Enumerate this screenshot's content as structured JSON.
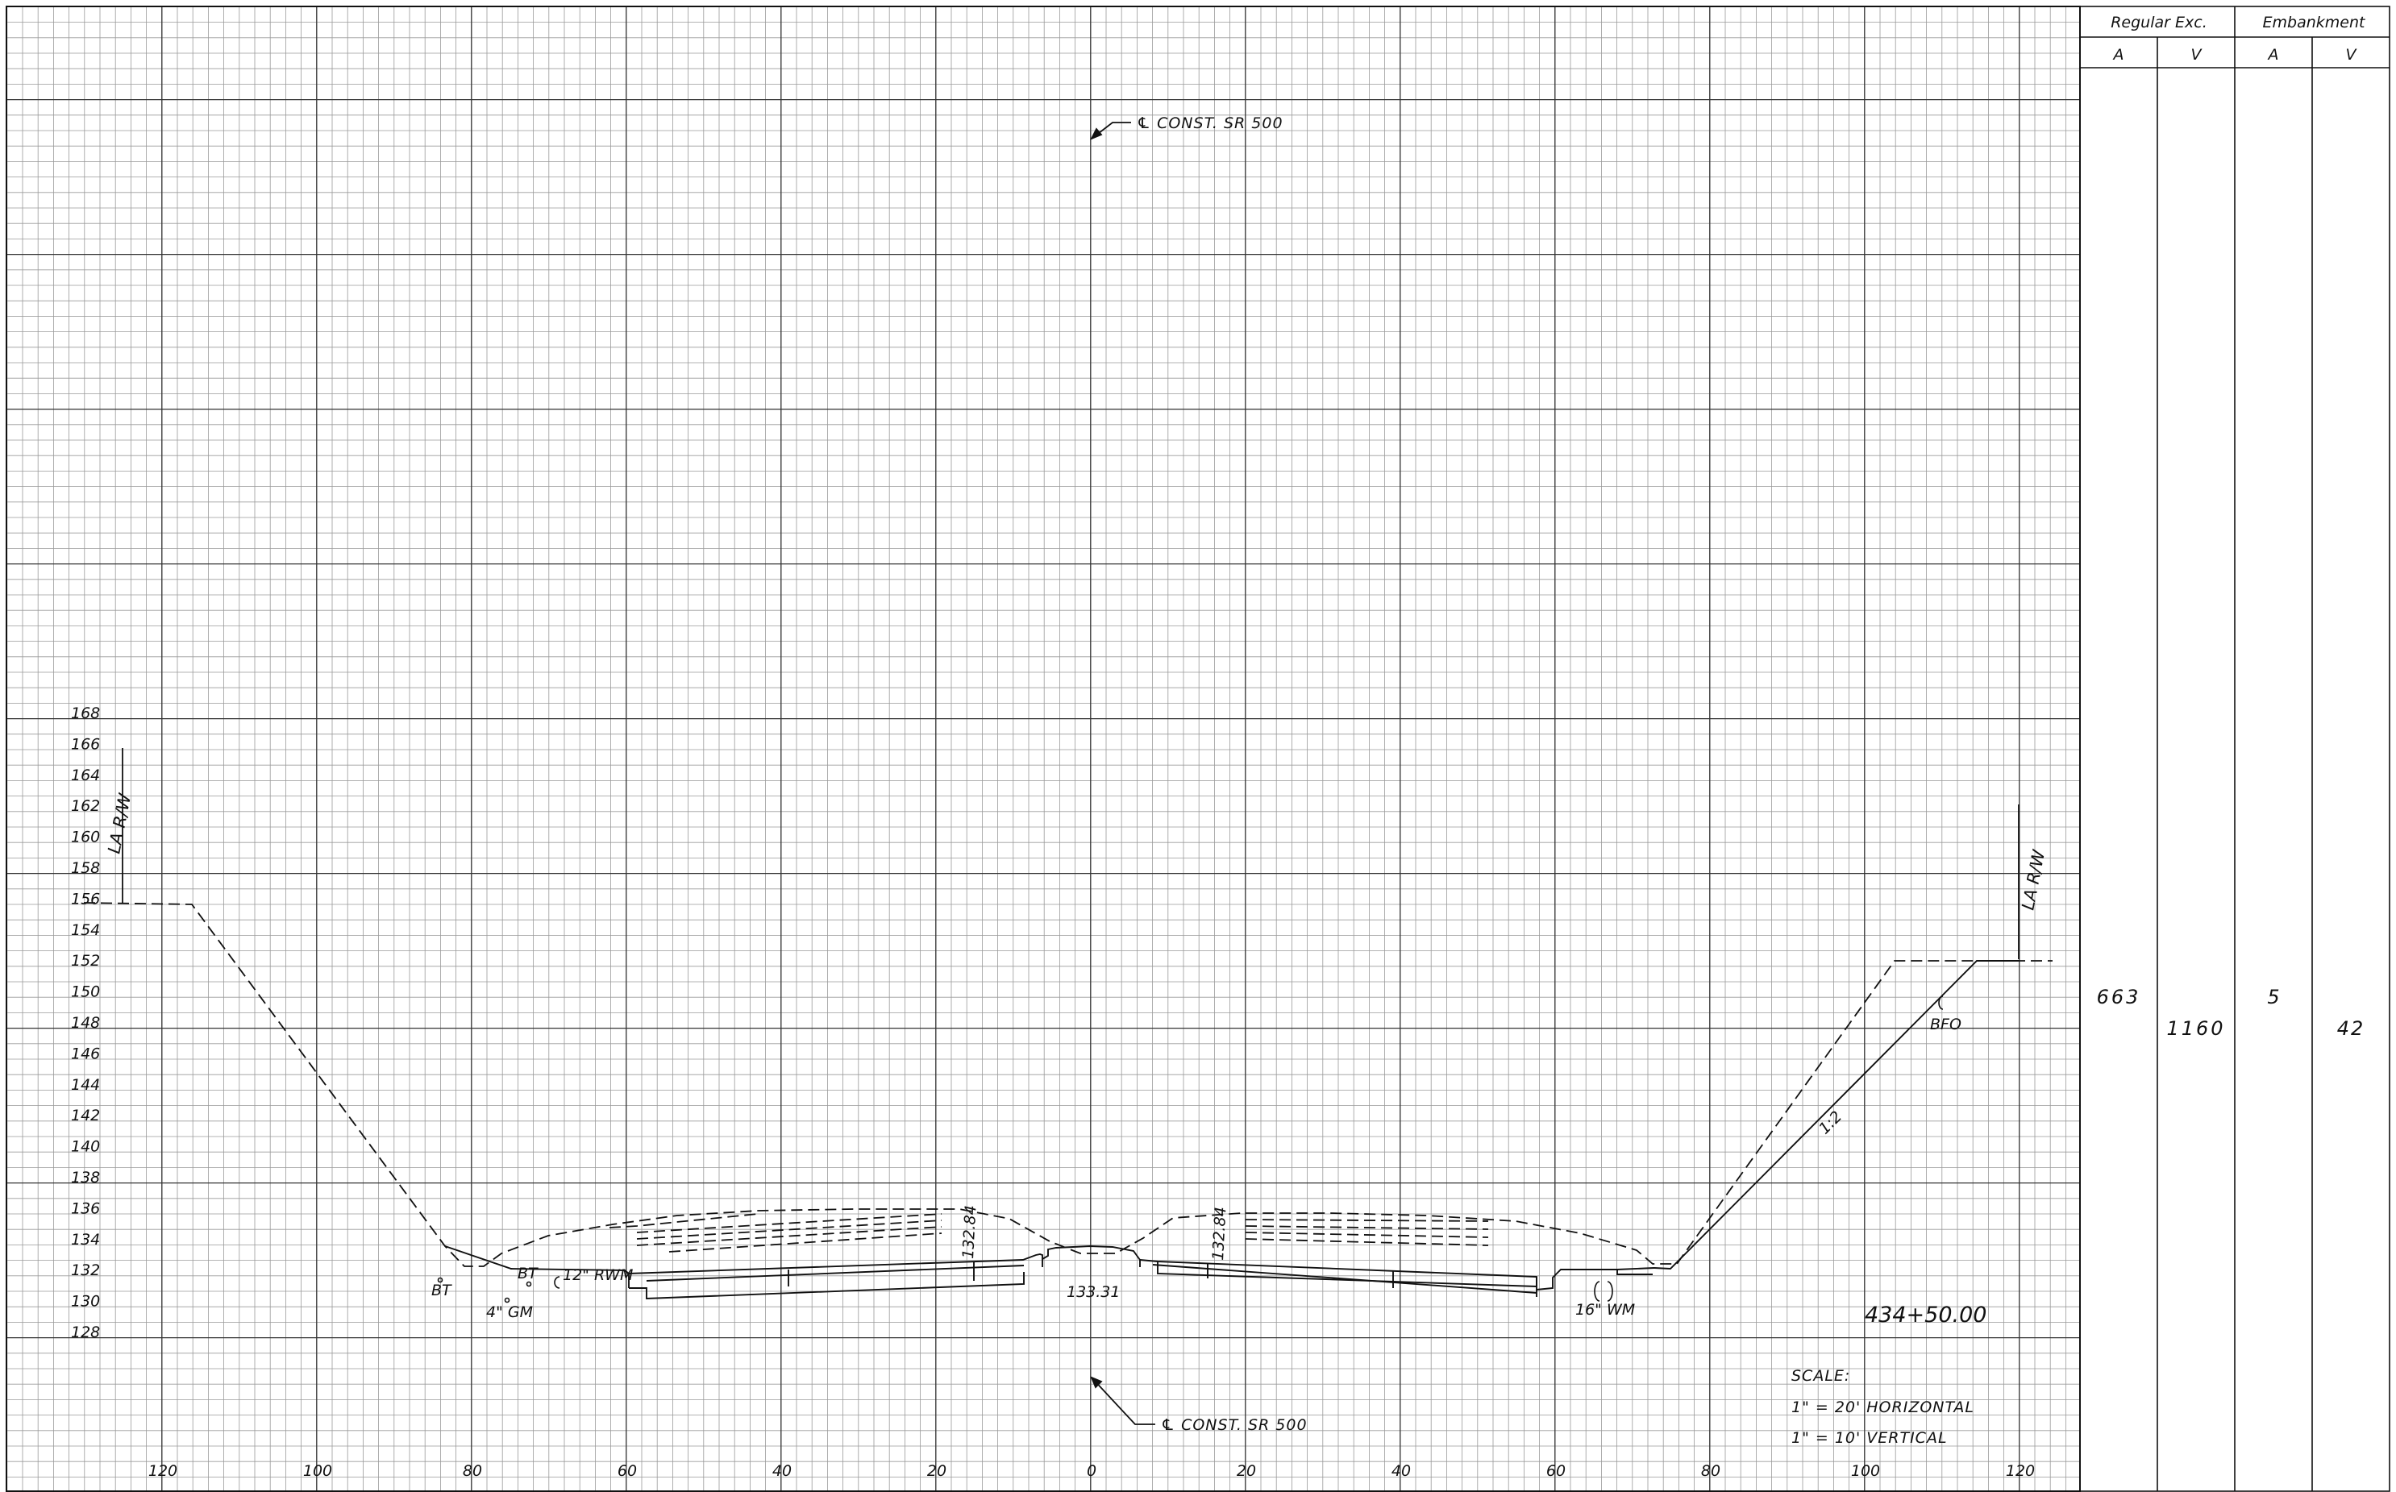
{
  "centerline_label_top": "℄ CONST. SR 500",
  "centerline_label_bottom": "℄ CONST. SR 500",
  "elevation_labels": [
    "168",
    "166",
    "164",
    "162",
    "160",
    "158",
    "156",
    "154",
    "152",
    "150",
    "148",
    "146",
    "144",
    "142",
    "140",
    "138",
    "136",
    "134",
    "132",
    "130",
    "128"
  ],
  "offset_labels": [
    "120",
    "100",
    "80",
    "60",
    "40",
    "20",
    "0",
    "20",
    "40",
    "60",
    "80",
    "100",
    "120"
  ],
  "right_of_way_left": "LA R/W",
  "right_of_way_right": "LA R/W",
  "annotations": {
    "bt_left": "BT",
    "bt_mid": "BT",
    "gas_main": "4\" GM",
    "water_main_left": "12\" RWM",
    "water_main_right": "16\" WM",
    "fiber_optic": "BFO",
    "slope": "1:2",
    "grade_left": "132.84",
    "grade_right": "132.84",
    "grade_center": "133.31"
  },
  "station": "434+50.00",
  "scale": {
    "heading": "SCALE:",
    "horizontal": "1\" = 20'  HORIZONTAL",
    "vertical": "1\" = 10'   VERTICAL"
  },
  "quantity_table": {
    "group_headers": [
      "Regular  Exc.",
      "Embankment"
    ],
    "column_headers": [
      "A",
      "V",
      "A",
      "V"
    ],
    "row_values": [
      "663",
      "1160",
      "5",
      "42"
    ]
  },
  "colors": {
    "ink": "#111111",
    "minor_grid": "#9a9a9a",
    "major_grid": "#333333"
  }
}
